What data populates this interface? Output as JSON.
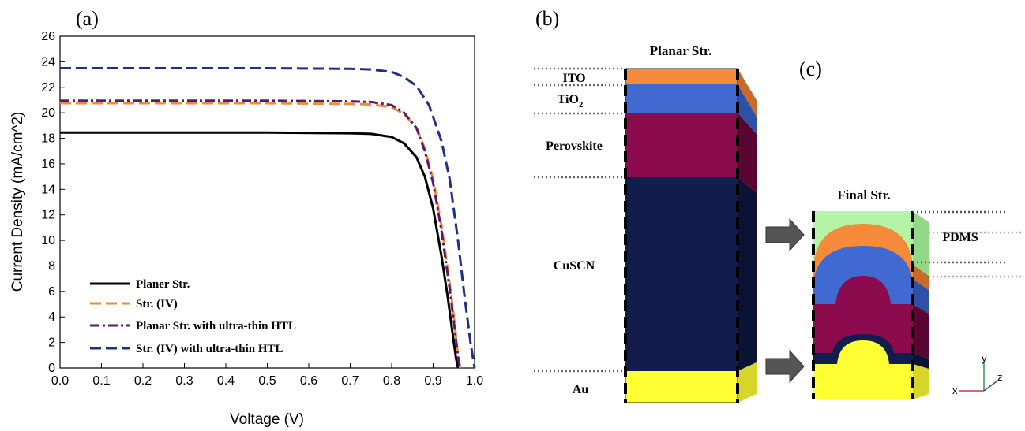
{
  "panels": {
    "a": "(a)",
    "b": "(b)",
    "c": "(c)"
  },
  "chart_data": {
    "type": "line",
    "xlabel": "Voltage (V)",
    "ylabel": "Current Density (mA/cm^2)",
    "xlim": [
      0.0,
      1.0
    ],
    "ylim": [
      0,
      26
    ],
    "xticks": [
      "0.0",
      "0.1",
      "0.2",
      "0.3",
      "0.4",
      "0.5",
      "0.6",
      "0.7",
      "0.8",
      "0.9",
      "1.0"
    ],
    "yticks": [
      "0",
      "2",
      "4",
      "6",
      "8",
      "10",
      "12",
      "14",
      "16",
      "18",
      "20",
      "22",
      "24",
      "26"
    ],
    "grid": false,
    "legend_position": "bottom-left",
    "series": [
      {
        "name": "Planer Str.",
        "color": "#000000",
        "style": "solid",
        "x": [
          0.0,
          0.5,
          0.7,
          0.75,
          0.8,
          0.83,
          0.86,
          0.88,
          0.9,
          0.92,
          0.935,
          0.945,
          0.955,
          0.96
        ],
        "y": [
          18.45,
          18.45,
          18.4,
          18.35,
          18.1,
          17.6,
          16.5,
          15.0,
          12.5,
          8.8,
          5.6,
          3.2,
          0.8,
          0.0
        ]
      },
      {
        "name": "Str. (IV)",
        "color": "#f08a3c",
        "style": "dash",
        "x": [
          0.0,
          0.5,
          0.7,
          0.75,
          0.8,
          0.83,
          0.86,
          0.88,
          0.9,
          0.92,
          0.94,
          0.95,
          0.96,
          0.965
        ],
        "y": [
          20.75,
          20.75,
          20.7,
          20.65,
          20.45,
          19.9,
          18.8,
          17.2,
          14.8,
          11.2,
          6.6,
          4.0,
          1.0,
          0.0
        ]
      },
      {
        "name": "Planar Str. with ultra-thin HTL",
        "color": "#5a1a6e",
        "style": "dashdot",
        "x": [
          0.0,
          0.5,
          0.7,
          0.75,
          0.8,
          0.83,
          0.86,
          0.88,
          0.9,
          0.92,
          0.94,
          0.95,
          0.96,
          0.965
        ],
        "y": [
          20.95,
          20.95,
          20.9,
          20.85,
          20.6,
          20.0,
          18.8,
          17.0,
          14.5,
          10.8,
          6.2,
          3.6,
          0.9,
          0.0
        ]
      },
      {
        "name": "Str. (IV) with ultra-thin HTL",
        "color": "#1f2f86",
        "style": "dash",
        "x": [
          0.0,
          0.5,
          0.7,
          0.75,
          0.8,
          0.83,
          0.86,
          0.89,
          0.92,
          0.94,
          0.96,
          0.975,
          0.99,
          1.0
        ],
        "y": [
          23.5,
          23.5,
          23.45,
          23.4,
          23.2,
          22.8,
          22.1,
          20.6,
          17.8,
          14.8,
          10.0,
          5.8,
          2.0,
          0.0
        ]
      }
    ]
  },
  "diagram_b": {
    "title": "Planar Str.",
    "layers": [
      {
        "name": "ITO",
        "color": "#f58a3a"
      },
      {
        "name": "TiO",
        "sub": "2",
        "color": "#4169d2"
      },
      {
        "name": "Perovskite",
        "color": "#8c0a4e"
      },
      {
        "name": "CuSCN",
        "color": "#121d4e"
      },
      {
        "name": "Au",
        "color": "#ffff33"
      }
    ]
  },
  "diagram_c": {
    "title": "Final Str.",
    "pdms_label": "PDMS",
    "pdms_color": "#b4f5a5",
    "axes": {
      "x": "x",
      "y": "y",
      "z": "z"
    }
  }
}
